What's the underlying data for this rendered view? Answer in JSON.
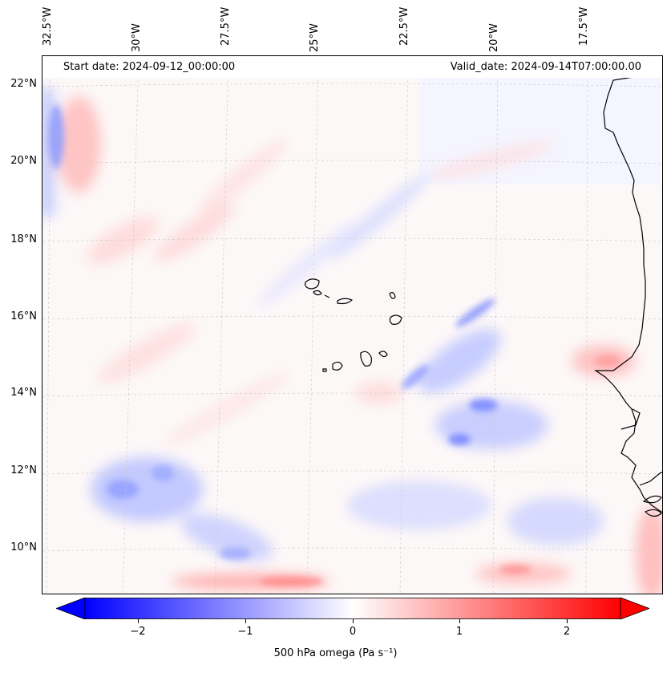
{
  "map": {
    "start_label": "Start date: 2024-09-12_00:00:00",
    "valid_label": "Valid_date: 2024-09-14T07:00:00.00",
    "lon_labels": [
      "32.5°W",
      "30°W",
      "27.5°W",
      "25°W",
      "22.5°W",
      "20°W",
      "17.5°W"
    ],
    "lat_labels": [
      "22°N",
      "20°N",
      "18°N",
      "16°N",
      "14°N",
      "12°N",
      "10°N"
    ],
    "field": "500 hPa omega",
    "colors": {
      "negative": "#0000ff",
      "zero": "#ffffff",
      "positive": "#ff0000",
      "coast": "#000000"
    }
  },
  "colorbar": {
    "label": "500 hPa omega (Pa s⁻¹)",
    "ticks": [
      "−2",
      "−1",
      "0",
      "1",
      "2"
    ],
    "range": [
      -2.5,
      2.5
    ]
  }
}
